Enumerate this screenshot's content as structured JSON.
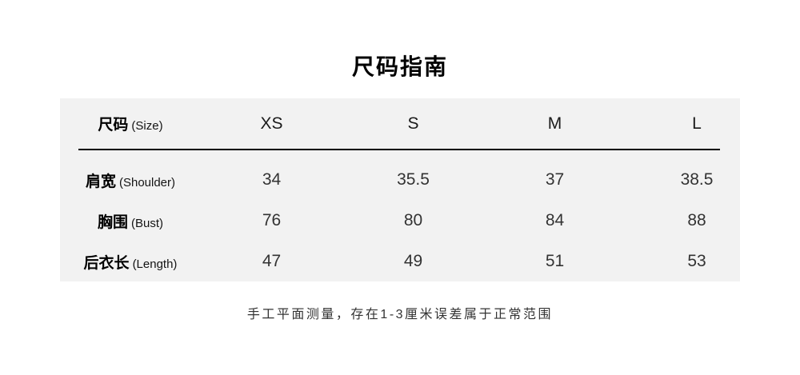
{
  "header": {
    "title": "尺码指南"
  },
  "table": {
    "row_header": {
      "zh": "尺码",
      "en": "(Size)"
    },
    "size_columns": [
      "XS",
      "S",
      "M",
      "L"
    ],
    "rows": [
      {
        "zh": "肩宽",
        "en": "(Shoulder)",
        "values": [
          "34",
          "35.5",
          "37",
          "38.5"
        ]
      },
      {
        "zh": "胸围",
        "en": "(Bust)",
        "values": [
          "76",
          "80",
          "84",
          "88"
        ]
      },
      {
        "zh": "后衣长",
        "en": "(Length)",
        "values": [
          "47",
          "49",
          "51",
          "53"
        ]
      }
    ]
  },
  "footnote": {
    "text": "手工平面测量，存在1-3厘米误差属于正常范围"
  },
  "colors": {
    "panel_bg": "#f2f2f2",
    "text_primary": "#000000",
    "text_values": "#333333",
    "divider": "#000000"
  },
  "chart_data": {
    "type": "table",
    "title": "尺码指南",
    "columns": [
      "尺码 (Size)",
      "XS",
      "S",
      "M",
      "L"
    ],
    "rows": [
      [
        "肩宽 (Shoulder)",
        34,
        35.5,
        37,
        38.5
      ],
      [
        "胸围 (Bust)",
        76,
        80,
        84,
        88
      ],
      [
        "后衣长 (Length)",
        47,
        49,
        51,
        53
      ]
    ],
    "footnote": "手工平面测量，存在1-3厘米误差属于正常范围",
    "layout": "header row of sizes, 3 measurement rows, unit: cm"
  }
}
